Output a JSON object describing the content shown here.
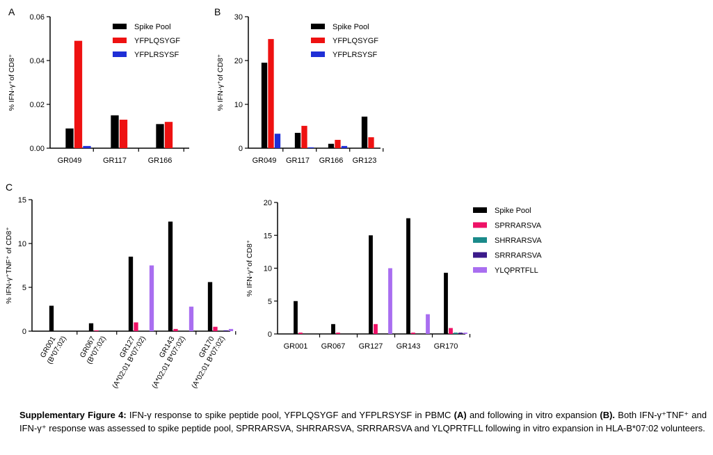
{
  "panel_labels": [
    "A",
    "B",
    "C"
  ],
  "chart_data": [
    {
      "type": "bar",
      "panel": "A",
      "categories": [
        "GR049",
        "GR117",
        "GR166"
      ],
      "series": [
        {
          "name": "Spike Pool",
          "values": [
            0.009,
            0.015,
            0.011
          ]
        },
        {
          "name": "YFPLQSYGF",
          "values": [
            0.049,
            0.013,
            0.012
          ]
        },
        {
          "name": "YFPLRSYSF",
          "values": [
            0.001,
            0,
            0
          ]
        }
      ],
      "ylabel": "% IFN-γ⁺of CD8⁺",
      "ylim": [
        0,
        0.06
      ],
      "yticks": [
        "0.00",
        "0.02",
        "0.04",
        "0.06"
      ],
      "legend": "top-right",
      "colors": [
        "#000000",
        "#ee1111",
        "#1f2fd6"
      ]
    },
    {
      "type": "bar",
      "panel": "B",
      "categories": [
        "GR049",
        "GR117",
        "GR166",
        "GR123"
      ],
      "series": [
        {
          "name": "Spike Pool",
          "values": [
            19.5,
            3.5,
            1.0,
            7.2
          ]
        },
        {
          "name": "YFPLQSYGF",
          "values": [
            24.9,
            5.1,
            1.9,
            2.5
          ]
        },
        {
          "name": "YFPLRSYSF",
          "values": [
            3.3,
            0.2,
            0.5,
            0
          ]
        }
      ],
      "ylabel": "% IFN-γ⁺of CD8⁺",
      "ylim": [
        0,
        30
      ],
      "yticks": [
        "0",
        "10",
        "20",
        "30"
      ],
      "legend": "top-right",
      "colors": [
        "#000000",
        "#ee1111",
        "#1f2fd6"
      ]
    },
    {
      "type": "bar",
      "panel": "C",
      "categories": [
        "GR001",
        "GR067",
        "GR127",
        "GR143",
        "GR170"
      ],
      "category_sublabels": [
        "(B*07:02)",
        "(B*07:02)",
        "(A*02:01 B*07:02)",
        "(A*02:01 B*07:02)",
        "(A*02:01 B*07:02)"
      ],
      "series": [
        {
          "name": "Spike Pool",
          "values": [
            2.9,
            0.9,
            8.5,
            12.5,
            5.6
          ]
        },
        {
          "name": "SPRRARSVA",
          "values": [
            0,
            0.05,
            1.0,
            0.25,
            0.5
          ]
        },
        {
          "name": "SHRRARSVA",
          "values": [
            0,
            0,
            0,
            0,
            0
          ]
        },
        {
          "name": "SRRRARSVA",
          "values": [
            0,
            0,
            0,
            0,
            0.05
          ]
        },
        {
          "name": "YLQPRTFLL",
          "values": [
            0,
            0,
            7.5,
            2.8,
            0.25
          ]
        }
      ],
      "ylabel": "% IFN-γ⁺TNF⁺ of CD8⁺",
      "ylim": [
        0,
        15
      ],
      "yticks": [
        "0",
        "5",
        "10",
        "15"
      ],
      "colors": [
        "#000000",
        "#ee1166",
        "#1a8a8a",
        "#3b1a8a",
        "#a96ef0"
      ]
    },
    {
      "type": "bar",
      "categories": [
        "GR001",
        "GR067",
        "GR127",
        "GR143",
        "GR170"
      ],
      "series": [
        {
          "name": "Spike Pool",
          "values": [
            5.0,
            1.5,
            15.0,
            17.6,
            9.3
          ]
        },
        {
          "name": "SPRRARSVA",
          "values": [
            0.2,
            0.2,
            1.5,
            0.2,
            0.9
          ]
        },
        {
          "name": "SHRRARSVA",
          "values": [
            0,
            0,
            0,
            0,
            0.2
          ]
        },
        {
          "name": "SRRRARSVA",
          "values": [
            0,
            0,
            0,
            0,
            0.2
          ]
        },
        {
          "name": "YLQPRTFLL",
          "values": [
            0,
            0,
            10.0,
            3.0,
            0.2
          ]
        }
      ],
      "ylabel": "% IFN-γ⁺of CD8⁺",
      "ylim": [
        0,
        20
      ],
      "yticks": [
        "0",
        "5",
        "10",
        "15",
        "20"
      ],
      "legend": "right",
      "colors": [
        "#000000",
        "#ee1166",
        "#1a8a8a",
        "#3b1a8a",
        "#a96ef0"
      ]
    }
  ],
  "caption": {
    "label": "Supplementary Figure 4:",
    "t1": " IFN-γ response to spike peptide pool, YFPLQSYGF and YFPLRSYSF in PBMC ",
    "a": "(A)",
    "t2": " and following in vitro expansion ",
    "b": "(B).",
    "t3": " Both IFN-γ⁺TNF⁺ and IFN-γ⁺ response  was assessed to spike peptide pool, SPRRARSVA, SHRRARSVA, SRRRARSVA and YLQPRTFLL following in vitro expansion in HLA-B*07:02 volunteers."
  }
}
